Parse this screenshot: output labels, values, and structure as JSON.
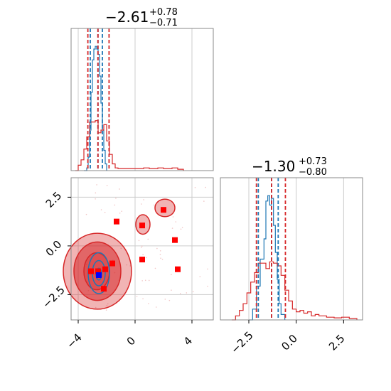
{
  "chart_data": [
    {
      "type": "histogram",
      "panel": "marginal-param-1",
      "title": {
        "value": "−2.61",
        "sup": "+0.78",
        "sub": "−0.71"
      },
      "xlim": [
        -4.5,
        5.5
      ],
      "grid": true,
      "series": [
        {
          "color": "#1f77b4",
          "bins": [
            [
              -3.6,
              0
            ],
            [
              -3.4,
              0.02
            ],
            [
              -3.3,
              0.1
            ],
            [
              -3.2,
              0.3
            ],
            [
              -3.1,
              0.58
            ],
            [
              -3.0,
              0.82
            ],
            [
              -2.9,
              0.9
            ],
            [
              -2.8,
              0.92
            ],
            [
              -2.7,
              0.9
            ],
            [
              -2.6,
              0.86
            ],
            [
              -2.5,
              0.7
            ],
            [
              -2.4,
              0.5
            ],
            [
              -2.3,
              0.3
            ],
            [
              -2.2,
              0.15
            ],
            [
              -2.1,
              0.05
            ],
            [
              -2.0,
              0
            ]
          ],
          "quantile_lines": [
            -3.15,
            -2.61,
            -2.3
          ]
        },
        {
          "color": "#d62728",
          "bins": [
            [
              -4.2,
              0
            ],
            [
              -4.0,
              0.04
            ],
            [
              -3.8,
              0.08
            ],
            [
              -3.6,
              0.16
            ],
            [
              -3.4,
              0.25
            ],
            [
              -3.2,
              0.36
            ],
            [
              -3.0,
              0.36
            ],
            [
              -2.8,
              0.37
            ],
            [
              -2.6,
              0.28
            ],
            [
              -2.4,
              0.3
            ],
            [
              -2.2,
              0.34
            ],
            [
              -2.0,
              0.22
            ],
            [
              -1.8,
              0.12
            ],
            [
              -1.6,
              0.05
            ],
            [
              -1.4,
              0.02
            ],
            [
              -1.2,
              0.015
            ],
            [
              0.2,
              0.015
            ],
            [
              0.6,
              0.02
            ],
            [
              1.0,
              0.015
            ],
            [
              1.6,
              0.02
            ],
            [
              2.0,
              0.015
            ],
            [
              2.6,
              0.02
            ],
            [
              3.0,
              0.01
            ],
            [
              3.4,
              0
            ]
          ],
          "quantile_lines": [
            -3.32,
            -2.61,
            -1.83
          ]
        }
      ]
    },
    {
      "type": "scatter",
      "panel": "joint-param-1-vs-param-2",
      "xlim": [
        -4.5,
        5.5
      ],
      "ylim": [
        -3.8,
        3.5
      ],
      "xticks": [
        "−4",
        "0",
        "4"
      ],
      "yticks": [
        "2.5",
        "0.0",
        "−2.5"
      ],
      "grid": true,
      "points_red_squares": [
        [
          -1.3,
          1.25
        ],
        [
          0.5,
          1.05
        ],
        [
          2.0,
          1.85
        ],
        [
          2.8,
          0.3
        ],
        [
          3.0,
          -1.2
        ],
        [
          0.5,
          -0.7
        ],
        [
          -1.6,
          -0.9
        ],
        [
          -2.1,
          -1.2
        ],
        [
          -2.2,
          -2.2
        ],
        [
          -2.6,
          -1.3
        ],
        [
          -3.1,
          -1.3
        ]
      ],
      "points_blue_squares": [
        [
          -2.55,
          -1.5
        ]
      ],
      "contours": [
        {
          "color": "#d62728",
          "center": [
            -2.65,
            -1.3
          ],
          "rx": 2.4,
          "ry": 1.95
        },
        {
          "color": "#d62728",
          "center": [
            -2.65,
            -1.3
          ],
          "rx": 1.65,
          "ry": 1.5
        },
        {
          "color": "#d62728",
          "center": [
            -2.7,
            -1.3
          ],
          "rx": 0.9,
          "ry": 0.95
        },
        {
          "color": "#d62728",
          "center": [
            2.1,
            1.95
          ],
          "rx": 0.7,
          "ry": 0.45
        },
        {
          "color": "#d62728",
          "center": [
            0.55,
            1.1
          ],
          "rx": 0.5,
          "ry": 0.5
        },
        {
          "color": "#1f77b4",
          "center": [
            -2.55,
            -1.4
          ],
          "rx": 0.75,
          "ry": 1.05
        },
        {
          "color": "#1f77b4",
          "center": [
            -2.55,
            -1.4
          ],
          "rx": 0.45,
          "ry": 0.65
        },
        {
          "color": "#1f77b4",
          "center": [
            -2.55,
            -1.45
          ],
          "rx": 0.2,
          "ry": 0.3
        }
      ]
    },
    {
      "type": "histogram",
      "panel": "marginal-param-2",
      "title": {
        "value": "−1.30",
        "sup": "+0.73",
        "sub": "−0.80"
      },
      "xlim": [
        -4.0,
        3.5
      ],
      "xticks": [
        "−2.5",
        "0.0",
        "2.5"
      ],
      "grid": true,
      "series": [
        {
          "color": "#1f77b4",
          "bins": [
            [
              -2.5,
              0
            ],
            [
              -2.3,
              0.08
            ],
            [
              -2.1,
              0.25
            ],
            [
              -1.9,
              0.45
            ],
            [
              -1.7,
              0.6
            ],
            [
              -1.6,
              0.88
            ],
            [
              -1.5,
              0.92
            ],
            [
              -1.4,
              0.85
            ],
            [
              -1.3,
              0.9
            ],
            [
              -1.2,
              0.7
            ],
            [
              -1.1,
              0.5
            ],
            [
              -1.0,
              0.3
            ],
            [
              -0.9,
              0.12
            ],
            [
              -0.8,
              0.04
            ],
            [
              -0.6,
              0
            ]
          ],
          "quantile_lines": [
            -2.0,
            -1.3,
            -0.95
          ]
        },
        {
          "color": "#d62728",
          "bins": [
            [
              -3.4,
              0
            ],
            [
              -3.2,
              0.03
            ],
            [
              -3.0,
              0.07
            ],
            [
              -2.8,
              0.12
            ],
            [
              -2.6,
              0.2
            ],
            [
              -2.4,
              0.28
            ],
            [
              -2.2,
              0.35
            ],
            [
              -2.0,
              0.42
            ],
            [
              -1.8,
              0.42
            ],
            [
              -1.6,
              0.38
            ],
            [
              -1.4,
              0.43
            ],
            [
              -1.2,
              0.42
            ],
            [
              -1.0,
              0.4
            ],
            [
              -0.8,
              0.33
            ],
            [
              -0.6,
              0.22
            ],
            [
              -0.4,
              0.14
            ],
            [
              -0.2,
              0.08
            ],
            [
              0.0,
              0.06
            ],
            [
              0.2,
              0.07
            ],
            [
              0.4,
              0.05
            ],
            [
              0.6,
              0.06
            ],
            [
              0.8,
              0.03
            ],
            [
              1.0,
              0.04
            ],
            [
              1.2,
              0.03
            ],
            [
              1.6,
              0.02
            ],
            [
              2.0,
              0.015
            ],
            [
              2.4,
              0.02
            ],
            [
              2.8,
              0.01
            ],
            [
              3.2,
              0
            ]
          ],
          "quantile_lines": [
            -2.1,
            -1.3,
            -0.57
          ]
        }
      ]
    }
  ]
}
